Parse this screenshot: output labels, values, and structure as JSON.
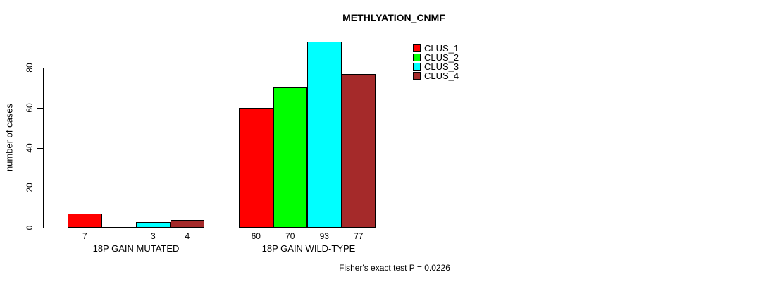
{
  "chart_data": {
    "type": "bar",
    "title": "METHLYATION_CNMF",
    "ylabel": "number of cases",
    "xlabel": "",
    "categories": [
      "18P GAIN MUTATED",
      "18P GAIN WILD-TYPE"
    ],
    "series": [
      {
        "name": "CLUS_1",
        "color": "#FF0000",
        "values": [
          7,
          60
        ]
      },
      {
        "name": "CLUS_2",
        "color": "#00FF00",
        "values": [
          0,
          70
        ]
      },
      {
        "name": "CLUS_3",
        "color": "#00FFFF",
        "values": [
          3,
          93
        ]
      },
      {
        "name": "CLUS_4",
        "color": "#A52A2A",
        "values": [
          4,
          77
        ]
      }
    ],
    "bar_value_labels": [
      [
        "7",
        "",
        "3",
        "4"
      ],
      [
        "60",
        "70",
        "93",
        "77"
      ]
    ],
    "yticks": [
      0,
      20,
      40,
      60,
      80
    ],
    "ylim": [
      0,
      93
    ],
    "grid": false,
    "legend_position": "top-right",
    "annotation": "Fisher's exact test P = 0.0226",
    "axis_color": "#000000",
    "background_color": "#ffffff"
  }
}
